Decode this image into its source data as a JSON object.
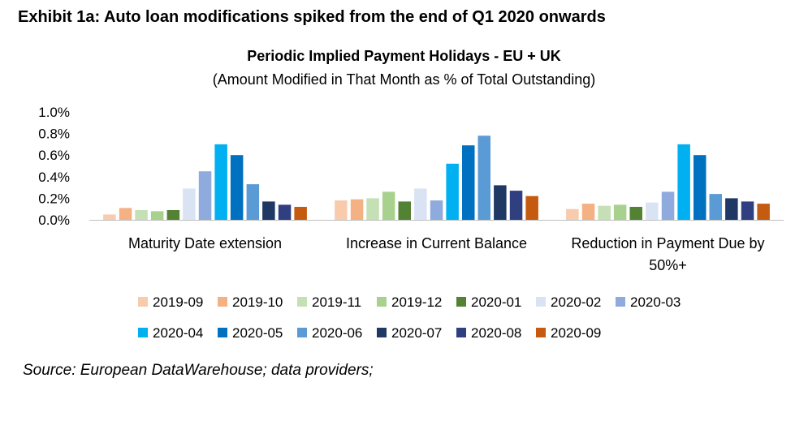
{
  "exhibit_title": "Exhibit 1a: Auto loan modifications spiked from the end of Q1 2020 onwards",
  "source": "Source: European DataWarehouse; data providers;",
  "chart_data": {
    "type": "bar",
    "title": "Periodic Implied Payment Holidays - EU + UK",
    "subtitle": "(Amount Modified in That Month as % of Total Outstanding)",
    "xlabel": "",
    "ylabel": "",
    "ylim": [
      0,
      1.0
    ],
    "yticks": [
      "0.0%",
      "0.2%",
      "0.4%",
      "0.6%",
      "0.8%",
      "1.0%"
    ],
    "grid": false,
    "legend_position": "bottom",
    "categories": [
      [
        "Maturity Date extension"
      ],
      [
        "Increase in Current Balance"
      ],
      [
        "Reduction in Payment Due by",
        "50%+"
      ]
    ],
    "series": [
      {
        "name": "2019-09",
        "color": "#f8cbad",
        "values": [
          0.05,
          0.18,
          0.1
        ]
      },
      {
        "name": "2019-10",
        "color": "#f4b183",
        "values": [
          0.11,
          0.19,
          0.15
        ]
      },
      {
        "name": "2019-11",
        "color": "#c5e0b4",
        "values": [
          0.09,
          0.2,
          0.13
        ]
      },
      {
        "name": "2019-12",
        "color": "#a9d18e",
        "values": [
          0.08,
          0.26,
          0.14
        ]
      },
      {
        "name": "2020-01",
        "color": "#548235",
        "values": [
          0.09,
          0.17,
          0.12
        ]
      },
      {
        "name": "2020-02",
        "color": "#dae3f3",
        "values": [
          0.29,
          0.29,
          0.16
        ]
      },
      {
        "name": "2020-03",
        "color": "#8faadc",
        "values": [
          0.45,
          0.18,
          0.26
        ]
      },
      {
        "name": "2020-04",
        "color": "#00b0f0",
        "values": [
          0.7,
          0.52,
          0.7
        ]
      },
      {
        "name": "2020-05",
        "color": "#0070c0",
        "values": [
          0.6,
          0.69,
          0.6
        ]
      },
      {
        "name": "2020-06",
        "color": "#5b9bd5",
        "values": [
          0.33,
          0.78,
          0.24
        ]
      },
      {
        "name": "2020-07",
        "color": "#203864",
        "values": [
          0.17,
          0.32,
          0.2
        ]
      },
      {
        "name": "2020-08",
        "color": "#2f3f7f",
        "values": [
          0.14,
          0.27,
          0.17
        ]
      },
      {
        "name": "2020-09",
        "color": "#c55a11",
        "values": [
          0.12,
          0.22,
          0.15
        ]
      }
    ]
  }
}
